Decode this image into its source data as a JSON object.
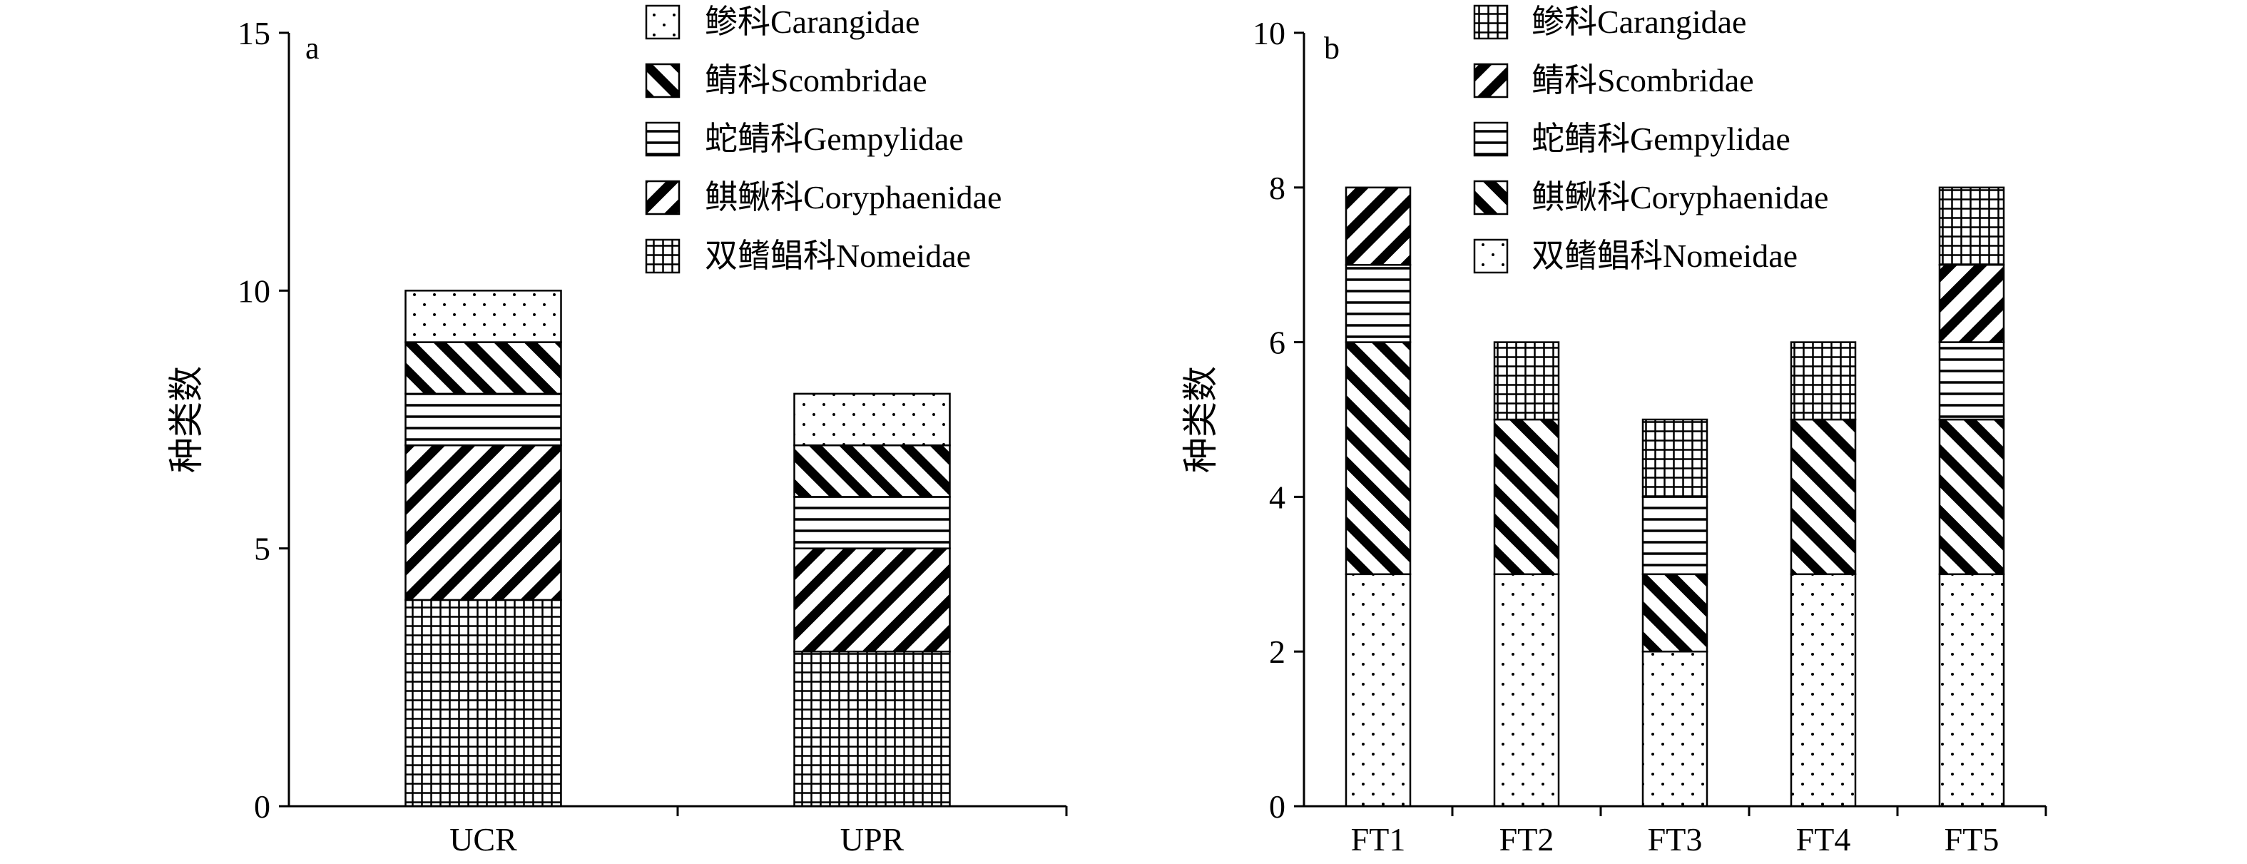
{
  "chart_data": [
    {
      "type": "bar",
      "stacked": true,
      "panel_label": "a",
      "ylabel": "种类数",
      "ylim": [
        0,
        15
      ],
      "yticks": [
        0,
        5,
        10,
        15
      ],
      "categories": [
        "UCR",
        "UPR"
      ],
      "legend_position": "top-right",
      "series": [
        {
          "name": "双鳍鲳科Nomeidae",
          "pattern": "grid",
          "values": [
            4,
            3
          ]
        },
        {
          "name": "鲯鳅科Coryphaenidae",
          "pattern": "diag-up",
          "values": [
            3,
            2
          ]
        },
        {
          "name": "蛇鲭科Gempylidae",
          "pattern": "horizontal",
          "values": [
            1,
            1
          ]
        },
        {
          "name": "鲭科Scombridae",
          "pattern": "diag-down",
          "values": [
            1,
            1
          ]
        },
        {
          "name": "鲹科Carangidae",
          "pattern": "dots",
          "values": [
            1,
            1
          ]
        }
      ],
      "legend_order": [
        4,
        3,
        2,
        1,
        0
      ]
    },
    {
      "type": "bar",
      "stacked": true,
      "panel_label": "b",
      "ylabel": "种类数",
      "ylim": [
        0,
        10
      ],
      "yticks": [
        0,
        2,
        4,
        6,
        8,
        10
      ],
      "categories": [
        "FT1",
        "FT2",
        "FT3",
        "FT4",
        "FT5"
      ],
      "legend_position": "top-right",
      "series": [
        {
          "name": "双鳍鲳科Nomeidae",
          "pattern": "dots",
          "values": [
            3,
            3,
            2,
            3,
            3
          ]
        },
        {
          "name": "鲯鳅科Coryphaenidae",
          "pattern": "diag-down",
          "values": [
            3,
            2,
            1,
            2,
            2
          ]
        },
        {
          "name": "蛇鲭科Gempylidae",
          "pattern": "horizontal",
          "values": [
            1,
            0,
            1,
            0,
            1
          ]
        },
        {
          "name": "鲭科Scombridae",
          "pattern": "diag-up",
          "values": [
            1,
            0,
            0,
            0,
            1
          ]
        },
        {
          "name": "鲹科Carangidae",
          "pattern": "grid",
          "values": [
            0,
            1,
            1,
            1,
            1
          ]
        }
      ],
      "legend_order": [
        4,
        3,
        2,
        1,
        0
      ]
    }
  ]
}
